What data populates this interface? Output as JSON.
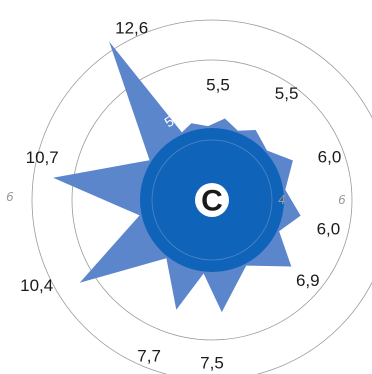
{
  "chart_data": {
    "type": "radial-star",
    "center_label": "C",
    "core_value": 4.8,
    "ring_labels": [
      "4",
      "6",
      "6"
    ],
    "rays": [
      {
        "value": 12.6,
        "label": "12,6"
      },
      {
        "value": 5.3,
        "label": "5,3"
      },
      {
        "value": 5.5,
        "label": "5,5"
      },
      {
        "value": 5.5,
        "label": "5,5"
      },
      {
        "value": 6.0,
        "label": "6,0"
      },
      {
        "value": 6.0,
        "label": "6,0"
      },
      {
        "value": 6.9,
        "label": "6,9"
      },
      {
        "value": 7.5,
        "label": "7,5"
      },
      {
        "value": 7.7,
        "label": "7,7"
      },
      {
        "value": 10.4,
        "label": "10,4"
      },
      {
        "value": 10.7,
        "label": "10,7"
      }
    ],
    "colors": {
      "star": "#5b86cc",
      "core": "#0f63b8",
      "center_circle": "#ffffff",
      "ring": "#9a9a9a"
    }
  }
}
